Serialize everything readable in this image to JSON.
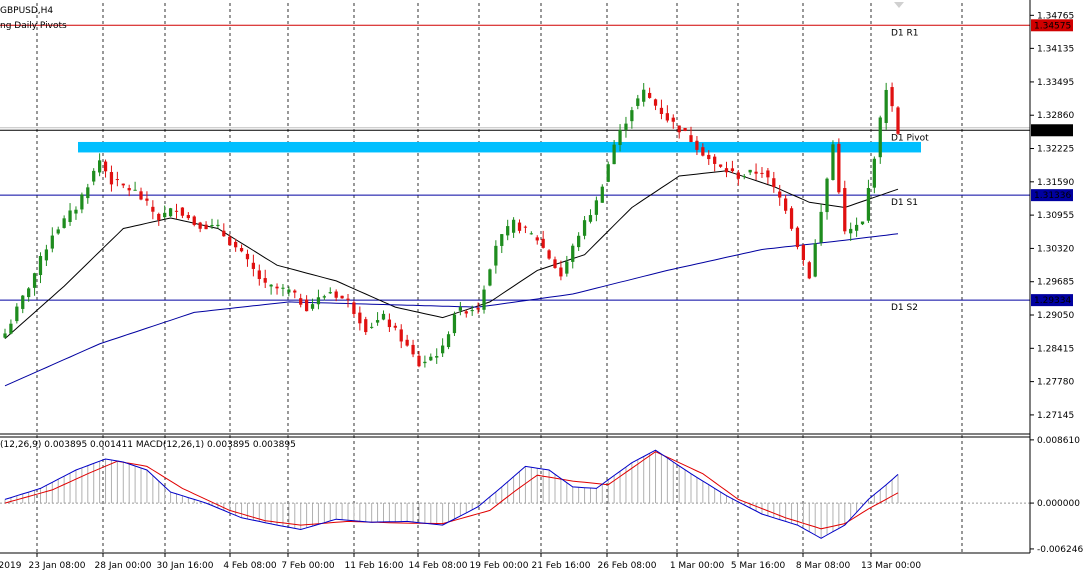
{
  "header": {
    "symbol": "GBPUSD,H4",
    "indicator_label": "ng Daily Pivots"
  },
  "macd_label": "(12,26,9) 0.003895 0.001411 MACD(12,26,1) 0.003895 0.003895",
  "colors": {
    "bull": "#1e8c1e",
    "bear": "#e01010",
    "sma_fast": "#000000",
    "sma_slow": "#0000a0",
    "zone": "#00bfff",
    "r1": "#d00000",
    "s_lines": "#0000a0",
    "macd_line": "#0000c8",
    "signal_line": "#e00000",
    "hist": "#b0b0b0"
  },
  "chart_data": {
    "type": "candlestick",
    "symbol": "GBPUSD",
    "timeframe": "H4",
    "price_axis": {
      "ticks": [
        "1.34765",
        "1.34135",
        "1.33495",
        "1.32860",
        "1.32225",
        "1.31590",
        "1.30955",
        "1.30320",
        "1.29685",
        "1.29050",
        "1.28415",
        "1.27780",
        "1.27145"
      ],
      "range": [
        1.268,
        1.35
      ]
    },
    "x_axis": {
      "ticks": [
        "2019",
        "23 Jan 08:00",
        "28 Jan 00:00",
        "30 Jan 16:00",
        "4 Feb 08:00",
        "7 Feb 00:00",
        "11 Feb 16:00",
        "14 Feb 08:00",
        "19 Feb 00:00",
        "21 Feb 16:00",
        "26 Feb 08:00",
        "1 Mar 00:00",
        "5 Mar 16:00",
        "8 Mar 08:00",
        "13 Mar 00:00"
      ]
    },
    "price_tags": [
      {
        "label": "1.34575",
        "value": 1.34575,
        "kind": "r1"
      },
      {
        "label": "1.32573",
        "value": 1.32573,
        "kind": "current"
      },
      {
        "label": "1.31336",
        "value": 1.31336,
        "kind": "s1"
      },
      {
        "label": "1.29334",
        "value": 1.29334,
        "kind": "s2"
      }
    ],
    "pivot_lines": [
      {
        "label": "D1 R1",
        "value": 1.34575
      },
      {
        "label": "D1 Pivot",
        "value": 1.32573
      },
      {
        "label": "D1 S1",
        "value": 1.31336
      },
      {
        "label": "D1 S2",
        "value": 1.29334
      }
    ],
    "resistance_zone": [
      1.3215,
      1.3235
    ],
    "close_path": [
      [
        0,
        1.287
      ],
      [
        4,
        1.296
      ],
      [
        8,
        1.306
      ],
      [
        12,
        1.311
      ],
      [
        16,
        1.32
      ],
      [
        18,
        1.316
      ],
      [
        22,
        1.314
      ],
      [
        26,
        1.309
      ],
      [
        29,
        1.311
      ],
      [
        32,
        1.308
      ],
      [
        36,
        1.307
      ],
      [
        40,
        1.302
      ],
      [
        44,
        1.296
      ],
      [
        48,
        1.295
      ],
      [
        51,
        1.292
      ],
      [
        55,
        1.295
      ],
      [
        58,
        1.293
      ],
      [
        61,
        1.288
      ],
      [
        64,
        1.29
      ],
      [
        67,
        1.286
      ],
      [
        70,
        1.281
      ],
      [
        74,
        1.284
      ],
      [
        76,
        1.291
      ],
      [
        80,
        1.292
      ],
      [
        83,
        1.304
      ],
      [
        86,
        1.308
      ],
      [
        90,
        1.305
      ],
      [
        94,
        1.298
      ],
      [
        97,
        1.306
      ],
      [
        100,
        1.312
      ],
      [
        103,
        1.323
      ],
      [
        106,
        1.33
      ],
      [
        108,
        1.333
      ],
      [
        112,
        1.328
      ],
      [
        116,
        1.324
      ],
      [
        120,
        1.319
      ],
      [
        124,
        1.317
      ],
      [
        128,
        1.318
      ],
      [
        132,
        1.311
      ],
      [
        134,
        1.304
      ],
      [
        136,
        1.298
      ],
      [
        138,
        1.31
      ],
      [
        140,
        1.323
      ],
      [
        142,
        1.306
      ],
      [
        145,
        1.308
      ],
      [
        147,
        1.321
      ],
      [
        149,
        1.334
      ],
      [
        151,
        1.3257
      ]
    ],
    "sma_fast_path": [
      [
        0,
        1.286
      ],
      [
        10,
        1.296
      ],
      [
        20,
        1.307
      ],
      [
        28,
        1.309
      ],
      [
        36,
        1.307
      ],
      [
        46,
        1.3
      ],
      [
        56,
        1.297
      ],
      [
        66,
        1.292
      ],
      [
        74,
        1.29
      ],
      [
        82,
        1.293
      ],
      [
        90,
        1.299
      ],
      [
        98,
        1.302
      ],
      [
        106,
        1.311
      ],
      [
        114,
        1.317
      ],
      [
        122,
        1.318
      ],
      [
        130,
        1.315
      ],
      [
        136,
        1.312
      ],
      [
        142,
        1.311
      ],
      [
        151,
        1.3145
      ]
    ],
    "sma_slow_path": [
      [
        0,
        1.277
      ],
      [
        16,
        1.285
      ],
      [
        32,
        1.291
      ],
      [
        48,
        1.293
      ],
      [
        64,
        1.2925
      ],
      [
        80,
        1.292
      ],
      [
        96,
        1.2945
      ],
      [
        112,
        1.299
      ],
      [
        128,
        1.303
      ],
      [
        140,
        1.3045
      ],
      [
        151,
        1.306
      ]
    ],
    "macd": {
      "label": "(12,26,9) 0.003895 0.001411 MACD(12,26,1) 0.003895 0.003895",
      "ticks": [
        "0.008610",
        "0.000000",
        "-0.006246"
      ],
      "range": [
        -0.0068,
        0.009
      ],
      "macd_path": [
        [
          0,
          0.0005
        ],
        [
          6,
          0.002
        ],
        [
          12,
          0.0045
        ],
        [
          17,
          0.006
        ],
        [
          20,
          0.0056
        ],
        [
          24,
          0.0045
        ],
        [
          28,
          0.0015
        ],
        [
          34,
          0.0
        ],
        [
          40,
          -0.002
        ],
        [
          46,
          -0.003
        ],
        [
          50,
          -0.0036
        ],
        [
          56,
          -0.0022
        ],
        [
          62,
          -0.0026
        ],
        [
          68,
          -0.0025
        ],
        [
          74,
          -0.003
        ],
        [
          80,
          -0.0005
        ],
        [
          84,
          0.0022
        ],
        [
          88,
          0.005
        ],
        [
          92,
          0.0045
        ],
        [
          96,
          0.0022
        ],
        [
          100,
          0.002
        ],
        [
          106,
          0.0055
        ],
        [
          110,
          0.0072
        ],
        [
          116,
          0.004
        ],
        [
          122,
          0.001
        ],
        [
          128,
          -0.0015
        ],
        [
          134,
          -0.003
        ],
        [
          138,
          -0.0048
        ],
        [
          142,
          -0.003
        ],
        [
          146,
          0.0005
        ],
        [
          149,
          0.0025
        ],
        [
          151,
          0.0039
        ]
      ],
      "signal_path": [
        [
          0,
          0.0
        ],
        [
          8,
          0.0018
        ],
        [
          14,
          0.004
        ],
        [
          19,
          0.0057
        ],
        [
          24,
          0.005
        ],
        [
          30,
          0.002
        ],
        [
          38,
          -0.001
        ],
        [
          44,
          -0.0024
        ],
        [
          50,
          -0.003
        ],
        [
          58,
          -0.0025
        ],
        [
          66,
          -0.0027
        ],
        [
          74,
          -0.0028
        ],
        [
          82,
          -0.001
        ],
        [
          86,
          0.0015
        ],
        [
          90,
          0.0038
        ],
        [
          96,
          0.003
        ],
        [
          102,
          0.0025
        ],
        [
          110,
          0.007
        ],
        [
          118,
          0.004
        ],
        [
          124,
          0.0005
        ],
        [
          132,
          -0.002
        ],
        [
          138,
          -0.0035
        ],
        [
          142,
          -0.0028
        ],
        [
          146,
          -0.0008
        ],
        [
          151,
          0.0014
        ]
      ]
    }
  }
}
